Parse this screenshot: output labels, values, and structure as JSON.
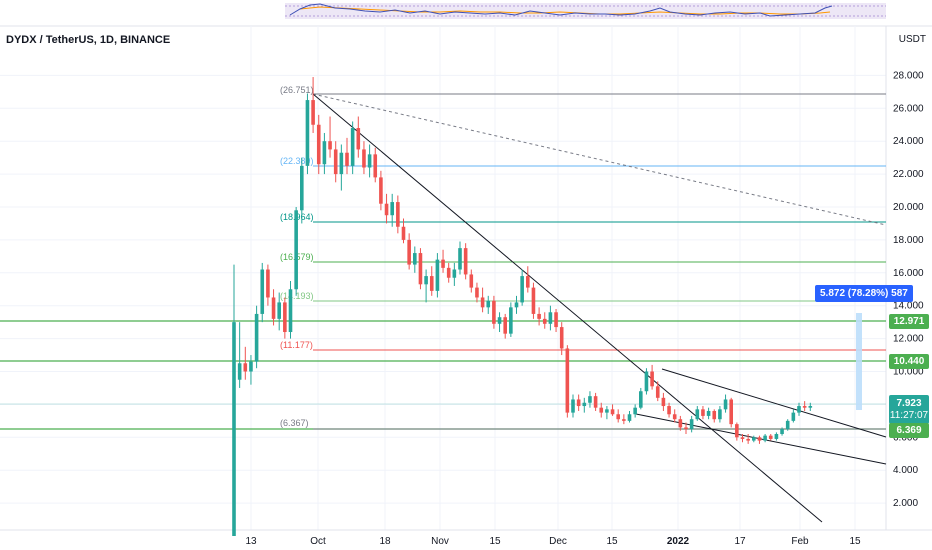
{
  "header": {
    "symbol": "DYDX / TetherUS, 1D, BINANCE",
    "currency": "USDT"
  },
  "price_tags": {
    "level_12971": "12.971",
    "level_10440": "10.440",
    "last_price": "7.923",
    "countdown": "11:27:07",
    "level_6369": "6.369"
  },
  "measure_label": "5.872 (78.28%) 587",
  "colors": {
    "up": "#26a69a",
    "down": "#ef5350",
    "support": "#4caf50",
    "last_price_bg": "#26a69a",
    "measure_bg": "#2962ff"
  },
  "chart_data": {
    "type": "candlestick",
    "yaxis": {
      "ticks": [
        "2.000",
        "4.000",
        "6.000",
        "8.000",
        "10.000",
        "12.000",
        "14.000",
        "16.000",
        "18.000",
        "20.000",
        "22.000",
        "24.000",
        "26.000",
        "28.000"
      ],
      "scale": "linear",
      "range": [
        0.6,
        29.2
      ]
    },
    "xaxis": {
      "ticks": [
        "13",
        "Oct",
        "18",
        "Nov",
        "15",
        "Dec",
        "15",
        "2022",
        "17",
        "Feb",
        "15"
      ]
    },
    "grid": true,
    "fib_labels": [
      "(26.751)",
      "(22.389)",
      "(18.964)",
      "(16.579)",
      "(14.193)",
      "(11.177)",
      "(6.367)"
    ],
    "horizontal_levels": [
      12.971,
      10.44,
      6.369
    ],
    "last_price": 7.923,
    "measure": {
      "change": 5.872,
      "percent": 78.28
    },
    "approx_candles": [
      [
        9.5,
        13.0,
        9.0,
        10.5
      ],
      [
        10.5,
        11.5,
        9.5,
        10.0
      ],
      [
        10.0,
        11.0,
        9.2,
        10.6
      ],
      [
        10.6,
        14.0,
        10.2,
        13.5
      ],
      [
        13.5,
        16.6,
        13.0,
        16.2
      ],
      [
        16.2,
        16.5,
        14.0,
        14.5
      ],
      [
        14.5,
        15.0,
        12.8,
        13.2
      ],
      [
        13.2,
        14.8,
        12.5,
        14.2
      ],
      [
        14.2,
        14.5,
        12.0,
        12.4
      ],
      [
        12.4,
        15.5,
        12.0,
        15.0
      ],
      [
        15.0,
        20.0,
        14.6,
        19.8
      ],
      [
        19.8,
        23.0,
        19.0,
        22.5
      ],
      [
        22.5,
        26.9,
        22.0,
        26.5
      ],
      [
        26.5,
        27.9,
        24.5,
        25.0
      ],
      [
        25.0,
        25.6,
        22.0,
        22.6
      ],
      [
        22.6,
        24.5,
        22.0,
        24.0
      ],
      [
        24.0,
        25.5,
        23.0,
        23.5
      ],
      [
        23.5,
        24.0,
        21.5,
        22.0
      ],
      [
        22.0,
        23.8,
        21.0,
        23.3
      ],
      [
        23.3,
        24.2,
        22.0,
        22.5
      ],
      [
        22.5,
        25.2,
        22.0,
        24.8
      ],
      [
        24.8,
        25.5,
        23.0,
        23.5
      ],
      [
        23.5,
        24.0,
        22.0,
        22.4
      ],
      [
        22.4,
        23.8,
        21.8,
        23.2
      ],
      [
        23.2,
        23.6,
        21.5,
        21.8
      ],
      [
        21.8,
        22.2,
        19.8,
        20.2
      ],
      [
        20.2,
        20.8,
        19.0,
        19.5
      ],
      [
        19.5,
        20.8,
        18.8,
        20.3
      ],
      [
        20.3,
        20.7,
        18.4,
        18.8
      ],
      [
        18.8,
        19.3,
        17.8,
        18.0
      ],
      [
        18.0,
        18.4,
        16.2,
        16.5
      ],
      [
        16.5,
        17.6,
        16.0,
        17.2
      ],
      [
        17.2,
        17.5,
        15.0,
        15.3
      ],
      [
        15.3,
        16.2,
        14.2,
        15.8
      ],
      [
        15.8,
        16.4,
        14.6,
        14.9
      ],
      [
        14.9,
        17.2,
        14.5,
        16.8
      ],
      [
        16.8,
        17.4,
        16.0,
        16.3
      ],
      [
        16.3,
        16.6,
        15.4,
        15.7
      ],
      [
        15.7,
        16.6,
        15.2,
        16.2
      ],
      [
        16.2,
        17.9,
        15.9,
        17.5
      ],
      [
        17.5,
        17.8,
        15.6,
        15.9
      ],
      [
        15.9,
        16.2,
        14.8,
        15.1
      ],
      [
        15.1,
        15.4,
        14.2,
        14.5
      ],
      [
        14.5,
        15.1,
        13.6,
        13.9
      ],
      [
        13.9,
        14.6,
        13.5,
        14.3
      ],
      [
        14.3,
        14.6,
        12.6,
        12.9
      ],
      [
        12.9,
        13.6,
        12.4,
        13.3
      ],
      [
        13.3,
        13.5,
        12.0,
        12.3
      ],
      [
        12.3,
        14.2,
        12.1,
        13.9
      ],
      [
        13.9,
        14.6,
        13.5,
        14.2
      ],
      [
        14.2,
        16.2,
        14.0,
        15.8
      ],
      [
        15.8,
        16.4,
        14.8,
        15.1
      ],
      [
        15.1,
        15.4,
        13.2,
        13.5
      ],
      [
        13.5,
        13.9,
        12.8,
        13.2
      ],
      [
        13.2,
        13.6,
        12.6,
        12.9
      ],
      [
        12.9,
        14.0,
        12.5,
        13.6
      ],
      [
        13.6,
        13.8,
        12.4,
        12.7
      ],
      [
        12.7,
        13.0,
        11.0,
        11.4
      ],
      [
        11.4,
        11.6,
        7.2,
        7.5
      ],
      [
        7.5,
        8.6,
        7.2,
        8.3
      ],
      [
        8.3,
        8.6,
        7.6,
        7.9
      ],
      [
        7.9,
        8.4,
        7.5,
        8.1
      ],
      [
        8.1,
        8.8,
        7.8,
        8.5
      ],
      [
        8.5,
        8.7,
        7.6,
        7.8
      ],
      [
        7.8,
        8.1,
        7.2,
        7.5
      ],
      [
        7.5,
        7.9,
        7.1,
        7.7
      ],
      [
        7.7,
        8.0,
        7.3,
        7.4
      ],
      [
        7.4,
        7.7,
        6.9,
        7.1
      ],
      [
        7.1,
        7.4,
        6.8,
        7.0
      ],
      [
        7.0,
        7.6,
        6.9,
        7.4
      ],
      [
        7.4,
        8.0,
        7.2,
        7.8
      ],
      [
        7.8,
        9.0,
        7.7,
        8.8
      ],
      [
        8.8,
        10.2,
        8.6,
        10.0
      ],
      [
        10.0,
        10.4,
        8.9,
        9.1
      ],
      [
        9.1,
        9.4,
        8.2,
        8.4
      ],
      [
        8.4,
        8.7,
        7.6,
        7.9
      ],
      [
        7.9,
        8.1,
        7.2,
        7.4
      ],
      [
        7.4,
        7.7,
        6.9,
        7.1
      ],
      [
        7.1,
        7.3,
        6.4,
        6.6
      ],
      [
        6.6,
        6.9,
        6.2,
        6.5
      ],
      [
        6.5,
        7.3,
        6.3,
        7.1
      ],
      [
        7.1,
        7.9,
        7.0,
        7.7
      ],
      [
        7.7,
        7.9,
        7.1,
        7.3
      ],
      [
        7.3,
        7.8,
        7.1,
        7.6
      ],
      [
        7.6,
        7.7,
        6.9,
        7.1
      ],
      [
        7.1,
        7.9,
        6.9,
        7.7
      ],
      [
        7.7,
        8.6,
        7.5,
        8.3
      ],
      [
        8.3,
        8.4,
        6.6,
        6.8
      ],
      [
        6.8,
        6.9,
        5.8,
        6.0
      ],
      [
        6.0,
        6.2,
        5.7,
        5.9
      ],
      [
        5.9,
        6.2,
        5.6,
        5.8
      ],
      [
        5.8,
        6.1,
        5.7,
        6.0
      ],
      [
        6.0,
        6.1,
        5.6,
        5.8
      ],
      [
        5.8,
        6.2,
        5.7,
        6.1
      ],
      [
        6.1,
        6.2,
        5.8,
        5.9
      ],
      [
        5.9,
        6.3,
        5.8,
        6.2
      ],
      [
        6.2,
        6.6,
        6.1,
        6.5
      ],
      [
        6.5,
        7.1,
        6.4,
        7.0
      ],
      [
        7.0,
        7.7,
        6.9,
        7.5
      ],
      [
        7.5,
        8.1,
        7.3,
        7.9
      ],
      [
        7.9,
        8.2,
        7.6,
        7.8
      ],
      [
        7.8,
        8.1,
        7.6,
        7.9
      ]
    ]
  }
}
